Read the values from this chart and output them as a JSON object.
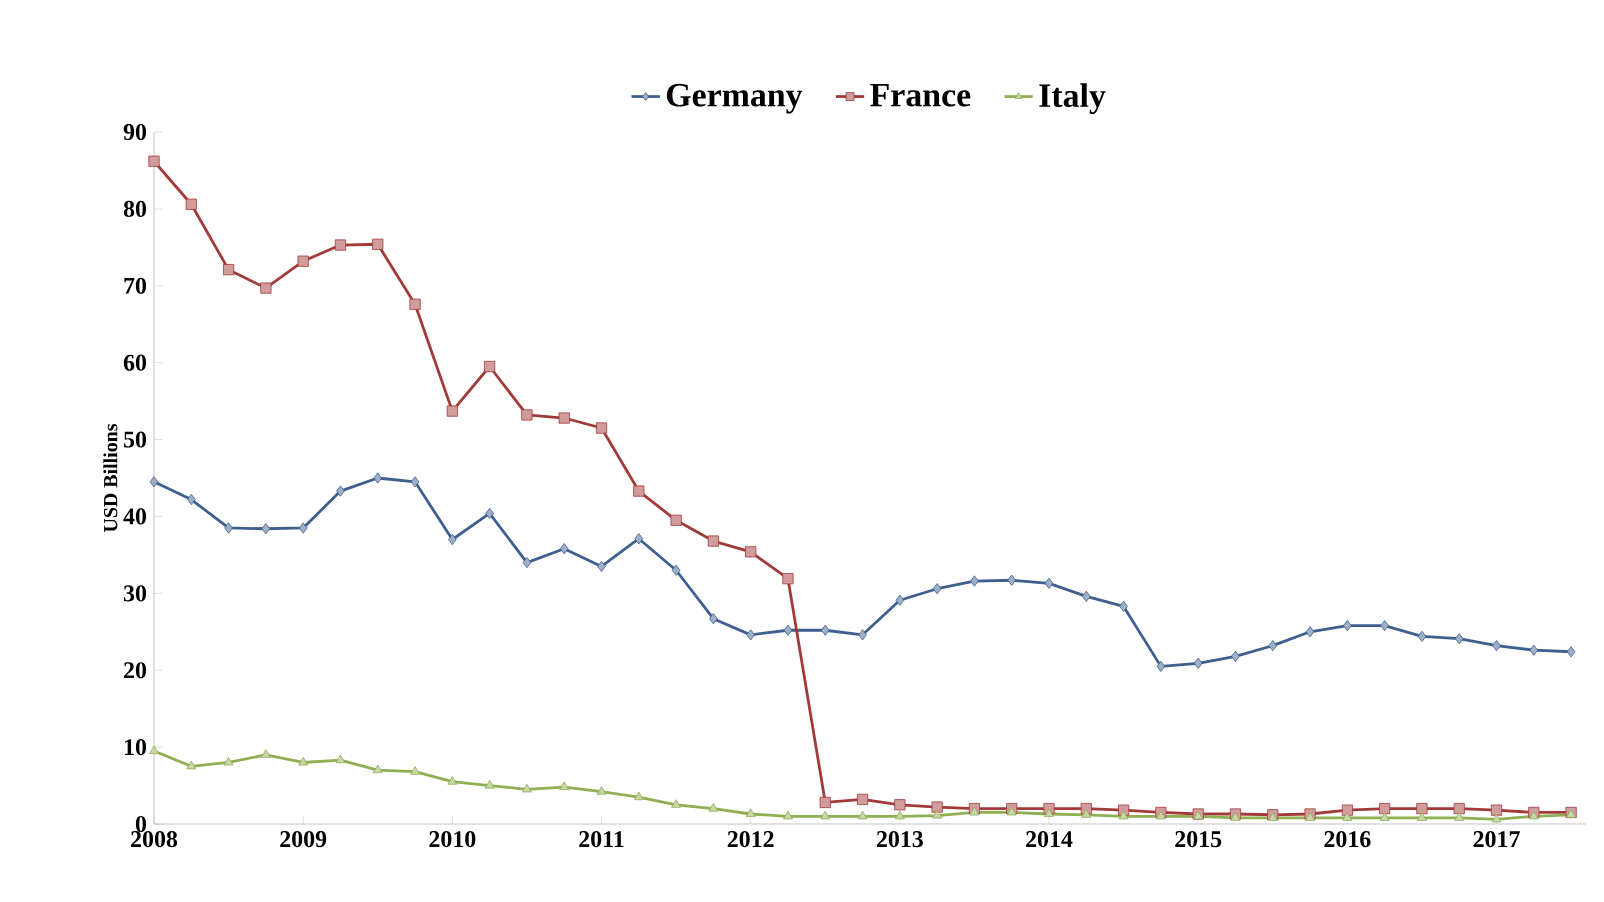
{
  "chart_data": {
    "type": "line",
    "ylabel": "USD Billions",
    "legend": "top",
    "x": [
      2008,
      2008.25,
      2008.5,
      2008.75,
      2009,
      2009.25,
      2009.5,
      2009.75,
      2010,
      2010.25,
      2010.5,
      2010.75,
      2011,
      2011.25,
      2011.5,
      2011.75,
      2012,
      2012.25,
      2012.5,
      2012.75,
      2013,
      2013.25,
      2013.5,
      2013.75,
      2014,
      2014.25,
      2014.5,
      2014.75,
      2015,
      2015.25,
      2015.5,
      2015.75,
      2016,
      2016.25,
      2016.5,
      2016.75,
      2017,
      2017.25,
      2017.5
    ],
    "xlim": [
      2008,
      2017.6
    ],
    "xticks": [
      2008,
      2009,
      2010,
      2011,
      2012,
      2013,
      2014,
      2015,
      2016,
      2017
    ],
    "ylim": [
      0,
      90
    ],
    "yticks": [
      0,
      10,
      20,
      30,
      40,
      50,
      60,
      70,
      80,
      90
    ],
    "series": [
      {
        "name": "Germany",
        "color": "#3f5f8f",
        "marker": "diamond",
        "values": [
          44.5,
          42.2,
          38.5,
          38.4,
          38.5,
          43.3,
          45,
          44.5,
          37,
          40.4,
          34,
          35.8,
          33.5,
          37.1,
          33,
          26.7,
          24.6,
          25.2,
          25.2,
          24.6,
          29.1,
          30.6,
          31.6,
          31.7,
          31.3,
          29.6,
          28.3,
          20.5,
          20.9,
          21.8,
          23.2,
          25,
          25.8,
          25.8,
          24.4,
          24.1,
          23.2,
          22.6,
          22.4
        ]
      },
      {
        "name": "France",
        "color": "#a33a3a",
        "marker": "square",
        "values": [
          86.2,
          80.6,
          72.1,
          69.7,
          73.2,
          75.3,
          75.4,
          67.6,
          53.7,
          59.5,
          53.2,
          52.8,
          51.5,
          43.3,
          39.5,
          36.8,
          35.4,
          31.9,
          2.8,
          3.2,
          2.5,
          2.2,
          2,
          2,
          2,
          2,
          1.8,
          1.5,
          1.3,
          1.3,
          1.2,
          1.3,
          1.8,
          2,
          2,
          2,
          1.8,
          1.5,
          1.5
        ]
      },
      {
        "name": "Italy",
        "color": "#8fb052",
        "marker": "triangle",
        "values": [
          9.5,
          7.5,
          8,
          9,
          8,
          8.3,
          7,
          6.8,
          5.5,
          5,
          4.5,
          4.8,
          4.2,
          3.5,
          2.5,
          2,
          1.3,
          1,
          1,
          1,
          1,
          1.1,
          1.5,
          1.5,
          1.3,
          1.2,
          1,
          1,
          1,
          0.8,
          0.8,
          0.8,
          0.8,
          0.8,
          0.8,
          0.8,
          0.6,
          1,
          1.2
        ]
      }
    ]
  }
}
